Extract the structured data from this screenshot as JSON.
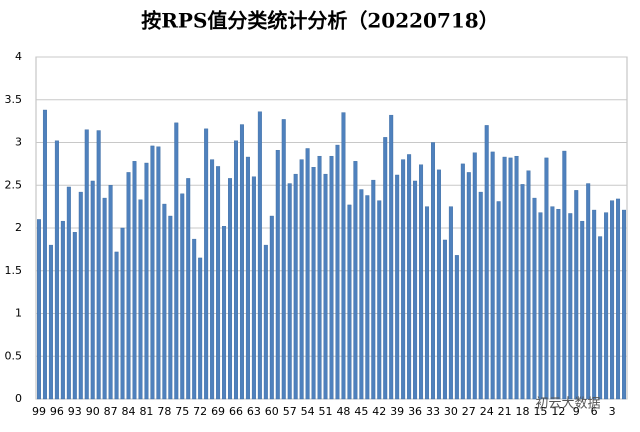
{
  "chart_data": {
    "type": "bar",
    "title": "按RPS值分类统计分析（20220718）",
    "categories": [
      "99",
      null,
      null,
      "96",
      null,
      null,
      "93",
      null,
      null,
      "90",
      null,
      null,
      "87",
      null,
      null,
      "84",
      null,
      null,
      "81",
      null,
      null,
      "78",
      null,
      null,
      "75",
      null,
      null,
      "72",
      null,
      null,
      "69",
      null,
      null,
      "66",
      null,
      null,
      "63",
      null,
      null,
      "60",
      null,
      null,
      "57",
      null,
      null,
      "54",
      null,
      null,
      "51",
      null,
      null,
      "48",
      null,
      null,
      "45",
      null,
      null,
      "42",
      null,
      null,
      "39",
      null,
      null,
      "36",
      null,
      null,
      "33",
      null,
      null,
      "30",
      null,
      null,
      "27",
      null,
      null,
      "24",
      null,
      null,
      "21",
      null,
      null,
      "18",
      null,
      null,
      "15",
      null,
      null,
      "12",
      null,
      null,
      "9",
      null,
      null,
      "6",
      null,
      null,
      "3",
      null,
      null
    ],
    "values": [
      2.1,
      3.38,
      1.8,
      3.02,
      2.08,
      2.48,
      1.95,
      2.42,
      3.15,
      2.55,
      3.14,
      2.35,
      2.5,
      1.72,
      2.0,
      2.65,
      2.78,
      2.33,
      2.76,
      2.96,
      2.95,
      2.28,
      2.14,
      3.23,
      2.4,
      2.58,
      1.87,
      1.65,
      3.16,
      2.8,
      2.72,
      2.02,
      2.58,
      3.02,
      3.21,
      2.83,
      2.6,
      3.36,
      1.8,
      2.14,
      2.91,
      3.27,
      2.52,
      2.63,
      2.8,
      2.93,
      2.71,
      2.84,
      2.63,
      2.84,
      2.97,
      3.35,
      2.27,
      2.78,
      2.45,
      2.38,
      2.56,
      2.32,
      3.06,
      3.32,
      2.62,
      2.8,
      2.86,
      2.55,
      2.74,
      2.25,
      3.0,
      2.68,
      1.86,
      2.25,
      1.68,
      2.75,
      2.65,
      2.88,
      2.42,
      3.2,
      2.89,
      2.31,
      2.83,
      2.82,
      2.84,
      2.51,
      2.67,
      2.35,
      2.18,
      2.82,
      2.25,
      2.22,
      2.9,
      2.17,
      2.44,
      2.08,
      2.52,
      2.21,
      1.9,
      2.18,
      2.32,
      2.34,
      2.21
    ],
    "color": "#4f81bd",
    "ylim": [
      0,
      4
    ],
    "yticks": [
      0,
      0.5,
      1,
      1.5,
      2,
      2.5,
      3,
      3.5,
      4
    ],
    "grid": true,
    "watermark": "初云大数据"
  }
}
